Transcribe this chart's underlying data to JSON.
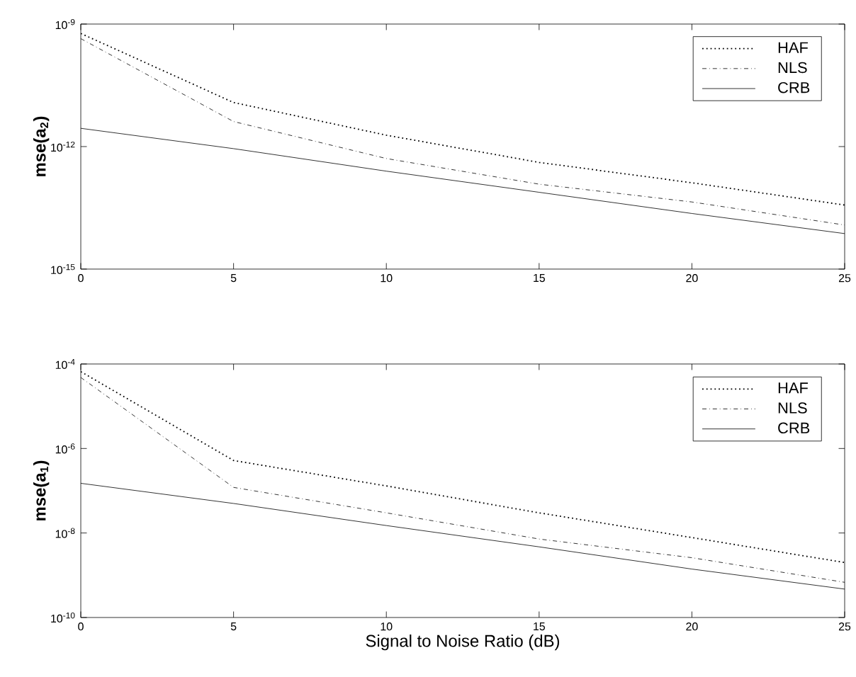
{
  "chart_data": [
    {
      "type": "line",
      "ylabel": "**mse(a$_{2}$)**",
      "log": "y",
      "legend": "top right",
      "x": [
        0,
        5,
        10,
        15,
        20,
        25
      ],
      "xlim": [
        0,
        25
      ],
      "xticks": [
        0,
        5,
        10,
        15,
        20,
        25
      ],
      "ylim": [
        1e-15,
        1e-09
      ],
      "yticks": [
        {
          "value": 1e-15,
          "label": "10$^{-15}$"
        },
        {
          "value": 1e-12,
          "label": "10$^{-12}$"
        },
        {
          "value": 1e-09,
          "label": "10$^{-9}$"
        }
      ],
      "series": [
        {
          "name": "HAF",
          "color": "#000000",
          "line_style": "dotted",
          "values": [
            5.9e-10,
            1.2e-11,
            1.9e-12,
            4.1e-13,
            1.3e-13,
            3.7e-14
          ]
        },
        {
          "name": "NLS",
          "color": "#000000",
          "line_style": "dashdot",
          "values": [
            4.4e-10,
            4.1e-12,
            5.1e-13,
            1.2e-13,
            4.4e-14,
            1.2e-14
          ]
        },
        {
          "name": "CRB",
          "color": "#000000",
          "line_style": "solid",
          "values": [
            2.8e-12,
            8.9e-13,
            2.5e-13,
            7.6e-14,
            2.3e-14,
            7.4e-15
          ]
        }
      ]
    },
    {
      "type": "line",
      "ylabel": "**mse(a$_{1}$)**",
      "xlabel": "Signal to Noise Ratio (dB)",
      "log": "y",
      "legend": "top right",
      "x": [
        0,
        5,
        10,
        15,
        20,
        25
      ],
      "xlim": [
        0,
        25
      ],
      "xticks": [
        0,
        5,
        10,
        15,
        20,
        25
      ],
      "ylim": [
        1e-10,
        0.0001
      ],
      "yticks": [
        {
          "value": 1e-10,
          "label": "10$^{-10}$"
        },
        {
          "value": 1e-08,
          "label": "10$^{-8}$"
        },
        {
          "value": 1e-06,
          "label": "10$^{-6}$"
        },
        {
          "value": 0.0001,
          "label": "10$^{-4}$"
        }
      ],
      "series": [
        {
          "name": "HAF",
          "color": "#000000",
          "line_style": "dotted",
          "values": [
            6.6e-05,
            5.2e-07,
            1.3e-07,
            3e-08,
            7.8e-09,
            2e-09
          ]
        },
        {
          "name": "NLS",
          "color": "#000000",
          "line_style": "dashdot",
          "values": [
            4.8e-05,
            1.2e-07,
            3e-08,
            7.2e-09,
            2.6e-09,
            6.8e-10
          ]
        },
        {
          "name": "CRB",
          "color": "#000000",
          "line_style": "solid",
          "values": [
            1.5e-07,
            5e-08,
            1.5e-08,
            4.7e-09,
            1.4e-09,
            4.7e-10
          ]
        }
      ]
    }
  ]
}
